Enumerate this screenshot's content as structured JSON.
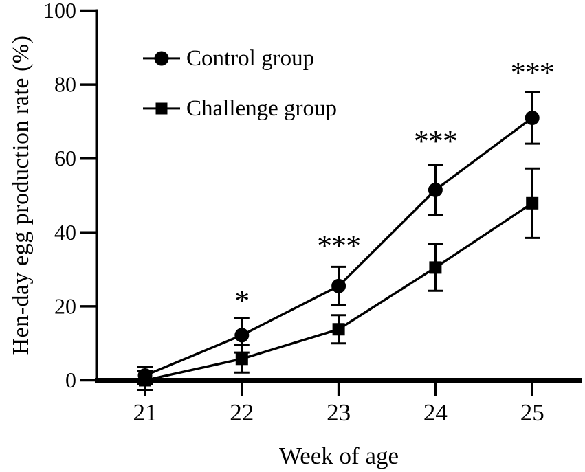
{
  "figure": {
    "background_color": "#ffffff",
    "ink_color": "#000000"
  },
  "chart_data": {
    "type": "line",
    "title": "",
    "xlabel": "Week of age",
    "ylabel": "Hen-day egg production rate (%)",
    "x": [
      21,
      22,
      23,
      24,
      25
    ],
    "ylim": [
      0,
      100
    ],
    "yticks": [
      0,
      20,
      40,
      60,
      80,
      100
    ],
    "grid": false,
    "legend_position": "top-left-inside",
    "error_bars": true,
    "series": [
      {
        "name": "Control group",
        "marker": "circle",
        "color": "#000000",
        "values": [
          1.3,
          12.2,
          25.5,
          51.5,
          71.0
        ],
        "error": [
          2.3,
          4.7,
          5.2,
          6.8,
          7.0
        ]
      },
      {
        "name": "Challenge group",
        "marker": "square",
        "color": "#000000",
        "values": [
          0.0,
          5.8,
          13.8,
          30.5,
          47.9
        ],
        "error": [
          2.6,
          3.7,
          3.8,
          6.3,
          9.4
        ]
      }
    ],
    "annotations": [
      {
        "x": 22,
        "y": 22.7,
        "text": "*"
      },
      {
        "x": 23,
        "y": 37.6,
        "text": "***"
      },
      {
        "x": 24,
        "y": 65.9,
        "text": "***"
      },
      {
        "x": 25,
        "y": 84.5,
        "text": "***"
      }
    ]
  }
}
